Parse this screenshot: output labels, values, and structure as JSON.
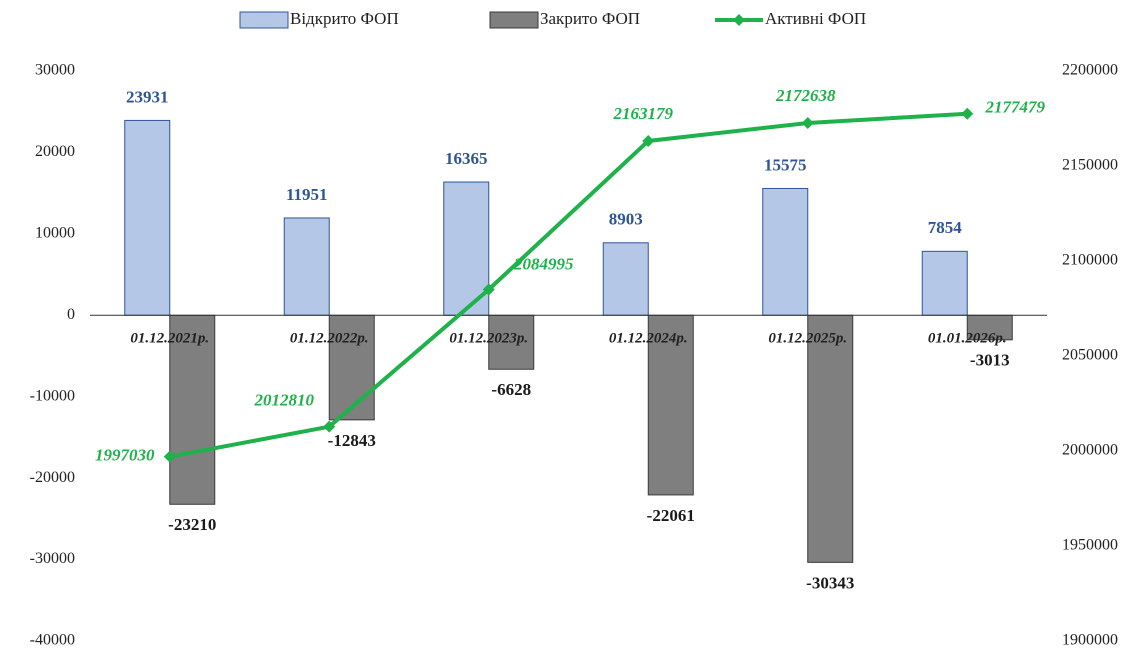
{
  "chart_data": {
    "type": "bar_line",
    "categories": [
      "01.12.2021р.",
      "01.12.2022р.",
      "01.12.2023р.",
      "01.12.2024р.",
      "01.12.2025р.",
      "01.01.2026р."
    ],
    "series": [
      {
        "name": "Відкрито  ФОП",
        "type": "bar",
        "color": "#b4c7e7",
        "values": [
          23931,
          11951,
          16365,
          8903,
          15575,
          7854
        ]
      },
      {
        "name": "Закрито ФОП",
        "type": "bar",
        "color": "#7f7f7f",
        "values": [
          -23210,
          -12843,
          -6628,
          -22061,
          -30343,
          -3013
        ]
      },
      {
        "name": "Активні  ФОП",
        "type": "line",
        "axis": "y2",
        "color": "#1fb14a",
        "values": [
          1997030,
          2012810,
          2084995,
          2163179,
          2172638,
          2177479
        ]
      }
    ],
    "ylim": [
      -40000,
      30000
    ],
    "yticks": [
      -40000,
      -30000,
      -20000,
      -10000,
      0,
      10000,
      20000,
      30000
    ],
    "y2lim": [
      1900000,
      2200000
    ],
    "y2ticks": [
      1900000,
      1950000,
      2000000,
      2050000,
      2100000,
      2150000,
      2200000
    ],
    "grid": false,
    "legend": "top"
  }
}
